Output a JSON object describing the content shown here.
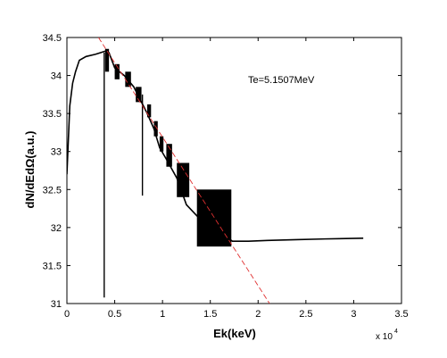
{
  "chart_data": {
    "type": "line",
    "xlabel": "Ek(keV)",
    "ylabel": "dN/dEdΩ(a.u.)",
    "x_multiplier": "x 10",
    "x_multiplier_exp": "4",
    "annotation": "Te=5.1507MeV",
    "xlim": [
      0,
      35000
    ],
    "ylim": [
      31,
      34.5
    ],
    "x_ticks": [
      0,
      5000,
      10000,
      15000,
      20000,
      25000,
      30000,
      35000
    ],
    "x_tick_labels": [
      "0",
      "0.5",
      "1",
      "1.5",
      "2",
      "2.5",
      "3",
      "3.5"
    ],
    "y_ticks": [
      31,
      31.5,
      32,
      32.5,
      33,
      33.5,
      34,
      34.5
    ],
    "y_tick_labels": [
      "31",
      "31.5",
      "32",
      "32.5",
      "33",
      "33.5",
      "34",
      "34.5"
    ],
    "series": [
      {
        "style": "solid",
        "color": "#000000",
        "points": [
          [
            0,
            32.7
          ],
          [
            300,
            33.6
          ],
          [
            600,
            33.9
          ],
          [
            900,
            34.05
          ],
          [
            1300,
            34.2
          ],
          [
            2000,
            34.25
          ],
          [
            3000,
            34.28
          ],
          [
            4000,
            34.32
          ],
          [
            4400,
            34.3
          ],
          [
            5000,
            34.1
          ],
          [
            6000,
            34.0
          ],
          [
            7000,
            33.85
          ],
          [
            7600,
            33.7
          ],
          [
            8400,
            33.5
          ],
          [
            9100,
            33.3
          ],
          [
            9700,
            33.05
          ],
          [
            10400,
            32.9
          ],
          [
            11500,
            32.65
          ],
          [
            12500,
            32.3
          ],
          [
            14000,
            32.1
          ],
          [
            15500,
            31.95
          ],
          [
            17000,
            31.85
          ],
          [
            17300,
            31.82
          ],
          [
            19000,
            31.82
          ],
          [
            21000,
            31.83
          ],
          [
            24000,
            31.84
          ],
          [
            27000,
            31.85
          ],
          [
            31000,
            31.86
          ]
        ],
        "spikes": [
          [
            3900,
            31.08,
            34.3
          ],
          [
            7900,
            32.42,
            33.75
          ]
        ],
        "bands": [
          [
            4000,
            4400,
            34.05,
            34.35
          ],
          [
            5000,
            5500,
            33.95,
            34.15
          ],
          [
            6100,
            6700,
            33.85,
            34.05
          ],
          [
            7200,
            7800,
            33.65,
            33.85
          ],
          [
            8400,
            8800,
            33.45,
            33.62
          ],
          [
            9100,
            9500,
            33.2,
            33.4
          ],
          [
            9700,
            10100,
            33.0,
            33.2
          ],
          [
            10400,
            11000,
            32.8,
            33.1
          ],
          [
            11500,
            12800,
            32.4,
            32.85
          ],
          [
            13600,
            17200,
            31.75,
            32.5
          ]
        ]
      },
      {
        "style": "dashed",
        "color": "#e03030",
        "points": [
          [
            3300,
            34.5
          ],
          [
            21200,
            31.0
          ]
        ]
      }
    ],
    "grid": false,
    "legend": "none"
  }
}
